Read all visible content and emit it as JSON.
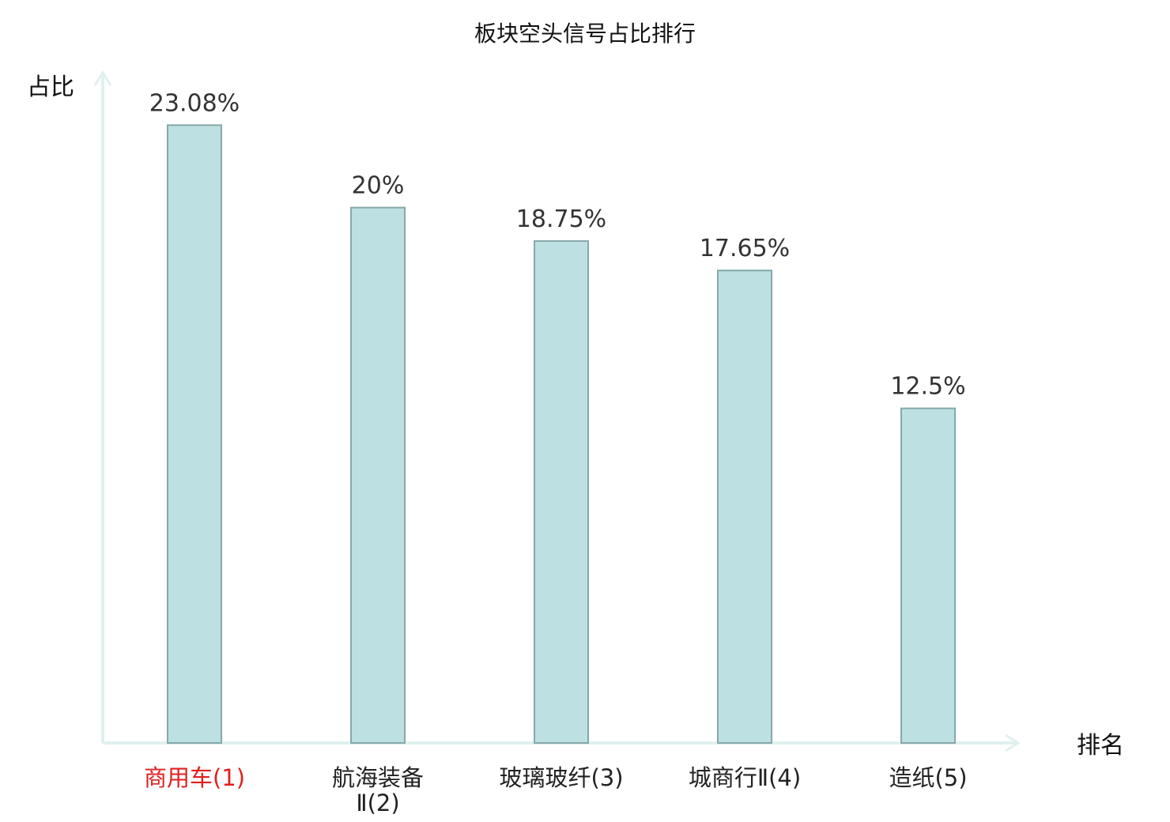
{
  "chart_data": {
    "type": "bar",
    "title": "板块空头信号占比排行",
    "xlabel": "排名",
    "ylabel": "占比",
    "categories": [
      {
        "lines": [
          "商用车(1)"
        ],
        "highlight": true
      },
      {
        "lines": [
          "航海装备",
          "Ⅱ(2)"
        ],
        "highlight": false
      },
      {
        "lines": [
          "玻璃玻纤(3)"
        ],
        "highlight": false
      },
      {
        "lines": [
          "城商行Ⅱ(4)"
        ],
        "highlight": false
      },
      {
        "lines": [
          "造纸(5)"
        ],
        "highlight": false
      }
    ],
    "values": [
      23.08,
      20,
      18.75,
      17.65,
      12.5
    ],
    "value_labels": [
      "23.08%",
      "20%",
      "18.75%",
      "17.65%",
      "12.5%"
    ],
    "ylim": [
      0,
      25
    ],
    "grid": false,
    "legend": "none",
    "colors": {
      "bar_fill": "#bde0e2",
      "bar_stroke": "#86a8a8",
      "axis": "#dff1ef",
      "highlight_text": "#e02020",
      "text": "#222222"
    }
  }
}
